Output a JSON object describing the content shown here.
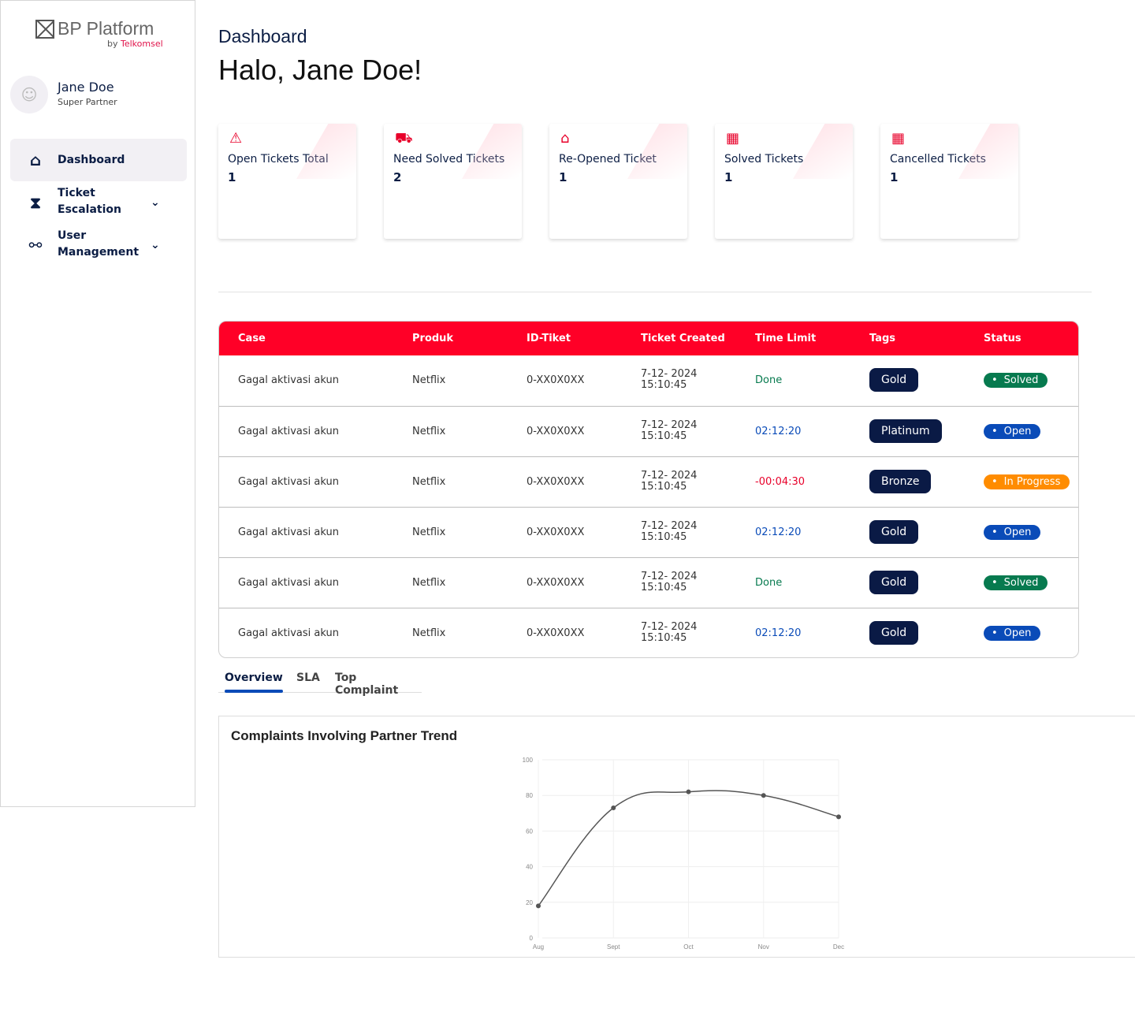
{
  "brand": {
    "name": "BP Platform",
    "by": "by ",
    "company": "Telkomsel"
  },
  "user": {
    "name": "Jane Doe",
    "role": "Super Partner"
  },
  "nav": [
    {
      "label": "Dashboard",
      "icon": "home-icon"
    },
    {
      "label": "Ticket Escalation",
      "icon": "tags-icon"
    },
    {
      "label": "User Management",
      "icon": "users-icon"
    }
  ],
  "header": {
    "title": "Dashboard",
    "greeting": "Halo, Jane Doe!"
  },
  "cards": [
    {
      "label": "Open Tickets Total",
      "value": "1",
      "icon": "alert-message-icon"
    },
    {
      "label": "Need Solved Tickets",
      "value": "2",
      "icon": "fast-truck-icon"
    },
    {
      "label": "Re-Opened Ticket",
      "value": "1",
      "icon": "reopen-house-icon"
    },
    {
      "label": "Solved Tickets",
      "value": "1",
      "icon": "calendar-icon"
    },
    {
      "label": "Cancelled Tickets",
      "value": "1",
      "icon": "calendar-icon"
    }
  ],
  "table": {
    "columns": [
      "Case",
      "Produk",
      "ID-Tiket",
      "Ticket Created",
      "Time Limit",
      "Tags",
      "Status"
    ],
    "rows": [
      {
        "case": "Gagal aktivasi akun",
        "produk": "Netflix",
        "id": "0-XX0X0XX",
        "date": "7-12- 2024",
        "time": "15:10:45",
        "limit": "Done",
        "tag": "Gold",
        "status": "Solved"
      },
      {
        "case": "Gagal aktivasi akun",
        "produk": "Netflix",
        "id": "0-XX0X0XX",
        "date": "7-12- 2024",
        "time": "15:10:45",
        "limit": "02:12:20",
        "tag": "Platinum",
        "status": "Open"
      },
      {
        "case": "Gagal aktivasi akun",
        "produk": "Netflix",
        "id": "0-XX0X0XX",
        "date": "7-12- 2024",
        "time": "15:10:45",
        "limit": "-00:04:30",
        "tag": "Bronze",
        "status": "In Progress"
      },
      {
        "case": "Gagal aktivasi akun",
        "produk": "Netflix",
        "id": "0-XX0X0XX",
        "date": "7-12- 2024",
        "time": "15:10:45",
        "limit": "02:12:20",
        "tag": "Gold",
        "status": "Open"
      },
      {
        "case": "Gagal aktivasi akun",
        "produk": "Netflix",
        "id": "0-XX0X0XX",
        "date": "7-12- 2024",
        "time": "15:10:45",
        "limit": "Done",
        "tag": "Gold",
        "status": "Solved"
      },
      {
        "case": "Gagal aktivasi akun",
        "produk": "Netflix",
        "id": "0-XX0X0XX",
        "date": "7-12- 2024",
        "time": "15:10:45",
        "limit": "02:12:20",
        "tag": "Gold",
        "status": "Open"
      }
    ]
  },
  "colors": {
    "accent": "#ff0027",
    "navy": "#0a1a45",
    "solved": "#077a4f",
    "open": "#0a4bb8",
    "progress": "#ff8c00",
    "overdue": "#e8002a"
  },
  "tabs": [
    "Overview",
    "SLA",
    "Top Complaint"
  ],
  "chart_data": {
    "type": "line",
    "title": "Complaints Involving Partner Trend",
    "categories": [
      "Aug",
      "Sept",
      "Oct",
      "Nov",
      "Dec"
    ],
    "values": [
      18,
      73,
      82,
      80,
      68
    ],
    "yticks": [
      0,
      20,
      40,
      60,
      80,
      100
    ],
    "ylim": [
      0,
      100
    ],
    "grid": true,
    "xlabel": "",
    "ylabel": ""
  }
}
